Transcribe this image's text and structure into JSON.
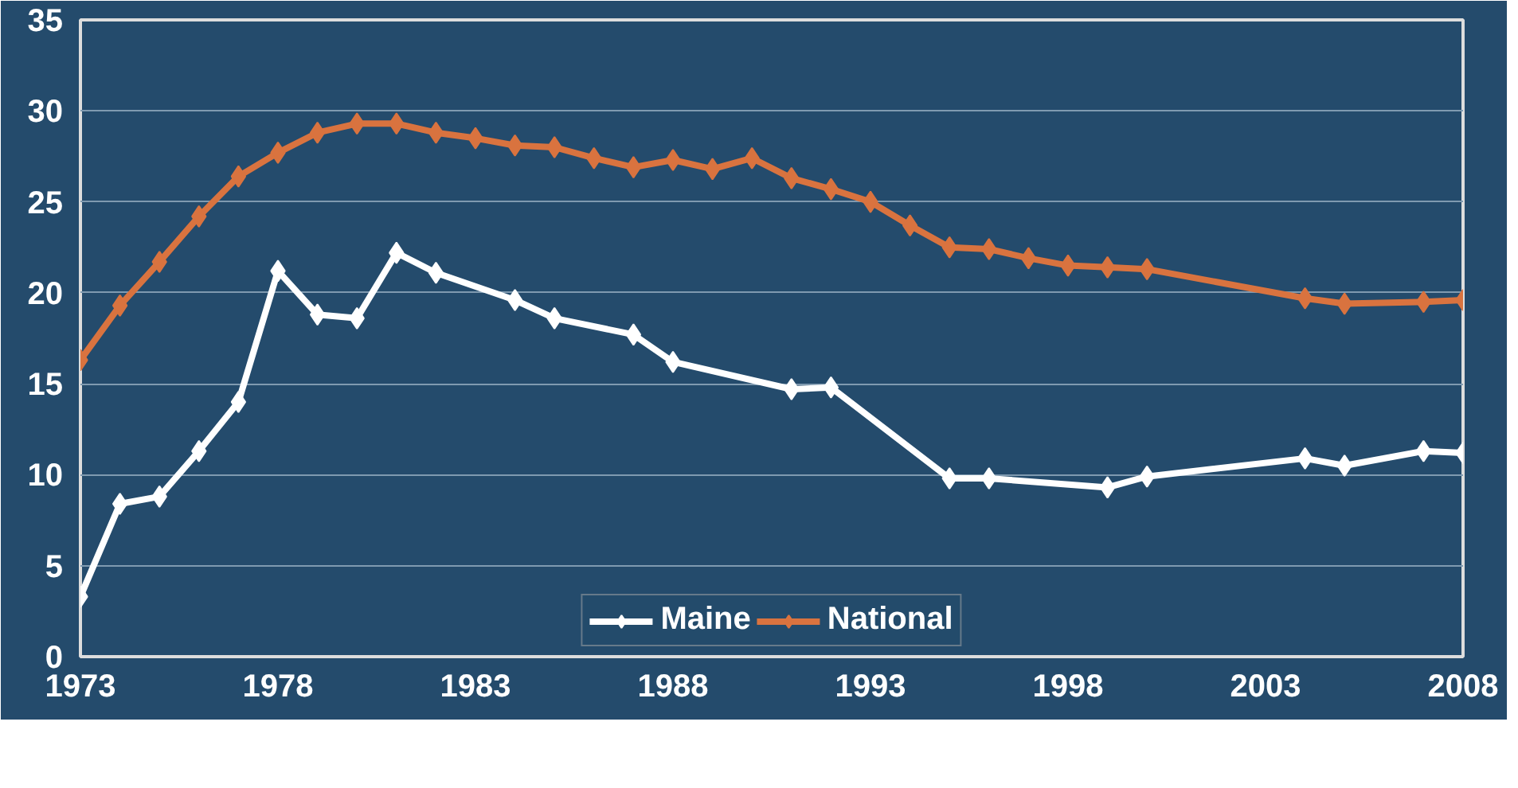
{
  "chart_data": {
    "type": "line",
    "marker": "diamond",
    "line_style": "solid",
    "grid": "y",
    "legend": "bottom",
    "xlim": [
      1973,
      2008
    ],
    "xticks": [
      1973,
      1978,
      1983,
      1988,
      1993,
      1998,
      2003,
      2008
    ],
    "ylim": [
      0,
      35
    ],
    "yticks": [
      0,
      5,
      10,
      15,
      20,
      25,
      30,
      35
    ],
    "series": [
      {
        "name": "Maine",
        "color": "#ffffff",
        "x": [
          1973,
          1974,
          1975,
          1976,
          1977,
          1978,
          1979,
          1980,
          1981,
          1982,
          1984,
          1985,
          1987,
          1988,
          1991,
          1992,
          1995,
          1996,
          1999,
          2000,
          2004,
          2005,
          2007,
          2008
        ],
        "values": [
          3.3,
          8.4,
          8.8,
          11.3,
          14.0,
          21.2,
          18.8,
          18.6,
          22.2,
          21.1,
          19.6,
          18.6,
          17.7,
          16.2,
          14.7,
          14.8,
          9.8,
          9.8,
          9.3,
          9.9,
          10.9,
          10.5,
          11.3,
          11.2
        ]
      },
      {
        "name": "National",
        "color": "#d9733f",
        "x": [
          1973,
          1974,
          1975,
          1976,
          1977,
          1978,
          1979,
          1980,
          1981,
          1982,
          1983,
          1984,
          1985,
          1986,
          1987,
          1988,
          1989,
          1990,
          1991,
          1992,
          1993,
          1994,
          1995,
          1996,
          1997,
          1998,
          1999,
          2000,
          2004,
          2005,
          2007,
          2008
        ],
        "values": [
          16.3,
          19.3,
          21.7,
          24.2,
          26.4,
          27.7,
          28.8,
          29.3,
          29.3,
          28.8,
          28.5,
          28.1,
          28.0,
          27.4,
          26.9,
          27.3,
          26.8,
          27.4,
          26.3,
          25.7,
          25.0,
          23.7,
          22.5,
          22.4,
          21.9,
          21.5,
          21.4,
          21.3,
          19.7,
          19.4,
          19.5,
          19.6
        ]
      }
    ]
  }
}
